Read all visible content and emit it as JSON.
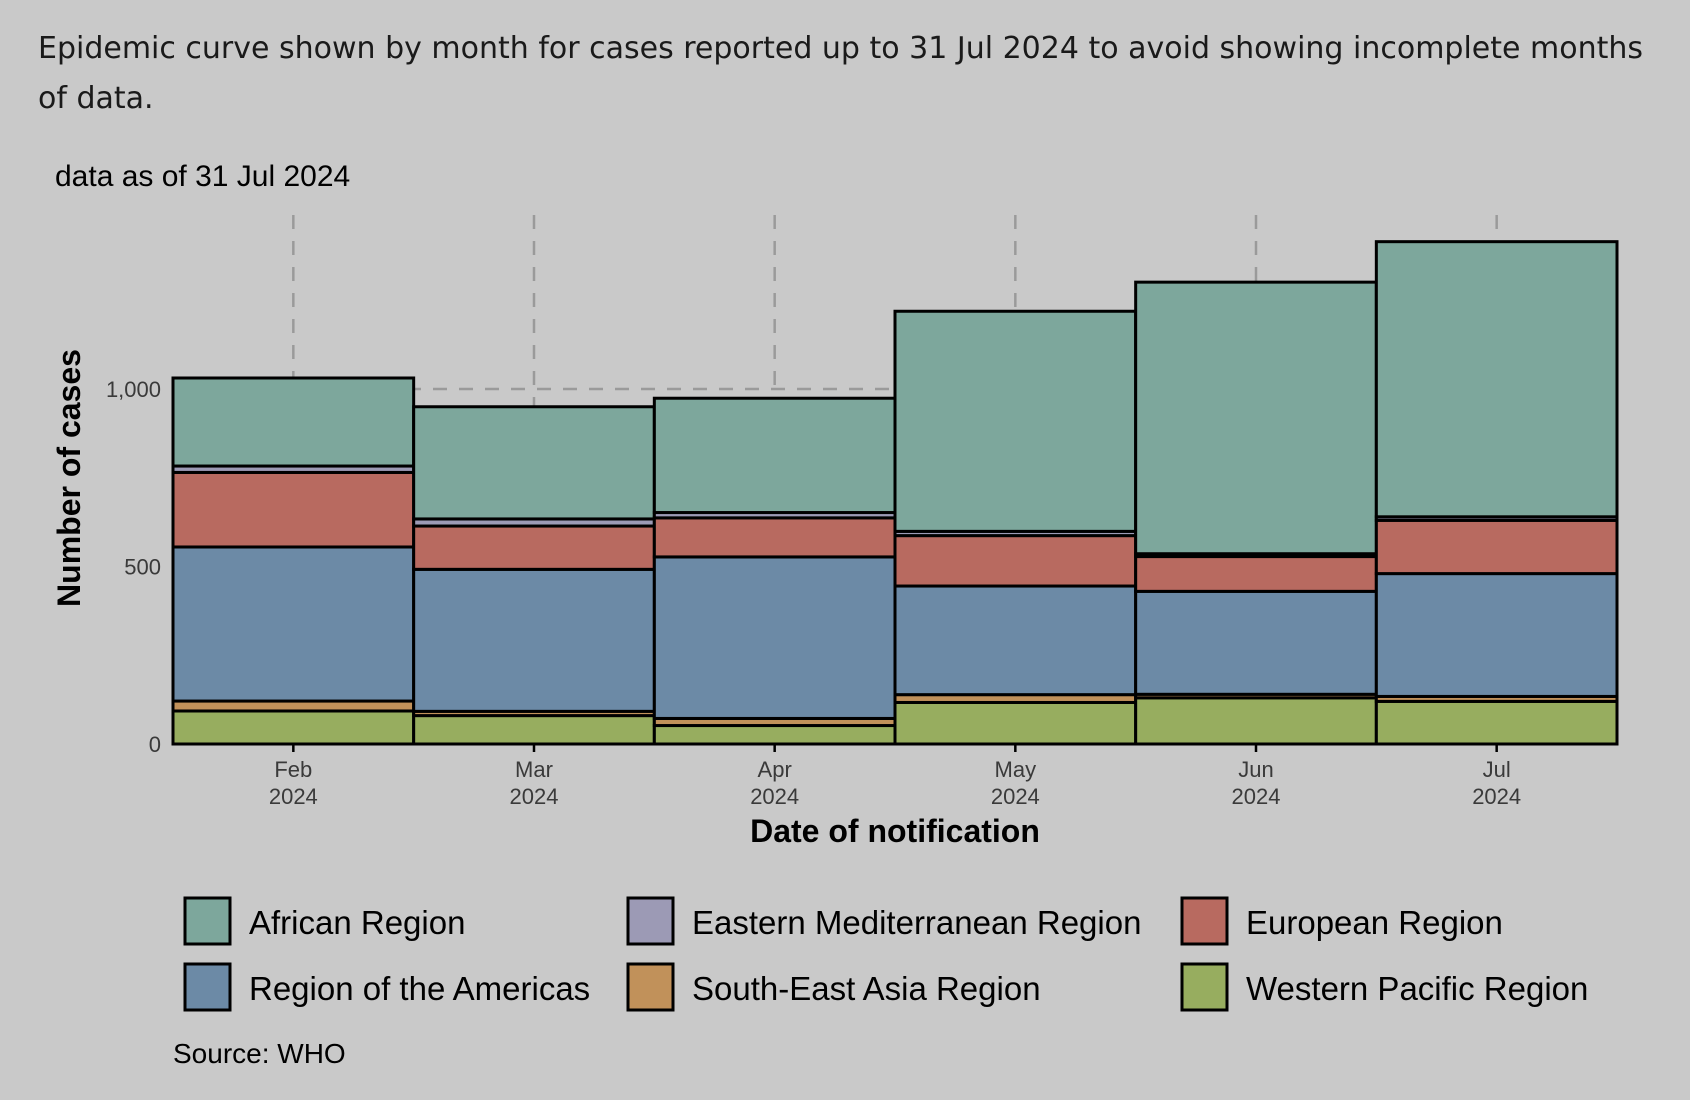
{
  "caption": "Epidemic curve shown by month for cases reported up to 31 Jul 2024 to avoid showing incomplete months of data.",
  "chart_data": {
    "type": "bar",
    "stacked": true,
    "subtitle": "data as of 31 Jul 2024",
    "xlabel": "Date of notification",
    "ylabel": "Number of cases",
    "ylim": [
      0,
      1450
    ],
    "yticks": [
      0,
      500,
      1000
    ],
    "ytick_labels": [
      "0",
      "500",
      "1,000"
    ],
    "grid": "dashed major gridlines",
    "categories": [
      "Feb 2024",
      "Mar 2024",
      "Apr 2024",
      "May 2024",
      "Jun 2024",
      "Jul 2024"
    ],
    "category_month": [
      "Feb",
      "Mar",
      "Apr",
      "May",
      "Jun",
      "Jul"
    ],
    "category_year": [
      "2024",
      "2024",
      "2024",
      "2024",
      "2024",
      "2024"
    ],
    "series": [
      {
        "name": "Western Pacific Region",
        "color": "#97ad5f",
        "values": [
          93,
          80,
          52,
          117,
          130,
          120
        ]
      },
      {
        "name": "South-East Asia Region",
        "color": "#c1915a",
        "values": [
          28,
          12,
          20,
          22,
          10,
          14
        ]
      },
      {
        "name": "Region of the Americas",
        "color": "#6c8aa6",
        "values": [
          434,
          400,
          455,
          306,
          290,
          346
        ]
      },
      {
        "name": "European Region",
        "color": "#b86a60",
        "values": [
          210,
          122,
          110,
          142,
          98,
          150
        ]
      },
      {
        "name": "Eastern Mediterranean Region",
        "color": "#9c9ab5",
        "values": [
          18,
          20,
          15,
          12,
          8,
          10
        ]
      },
      {
        "name": "African Region",
        "color": "#7da79c",
        "values": [
          248,
          316,
          322,
          620,
          765,
          775
        ]
      }
    ],
    "legend": {
      "placement": "bottom",
      "entries": [
        {
          "label": "African Region",
          "color": "#7da79c"
        },
        {
          "label": "Eastern Mediterranean Region",
          "color": "#9c9ab5"
        },
        {
          "label": "European Region",
          "color": "#b86a60"
        },
        {
          "label": "Region of the Americas",
          "color": "#6c8aa6"
        },
        {
          "label": "South-East Asia Region",
          "color": "#c1915a"
        },
        {
          "label": "Western Pacific Region",
          "color": "#97ad5f"
        }
      ]
    },
    "source": "Source: WHO"
  }
}
